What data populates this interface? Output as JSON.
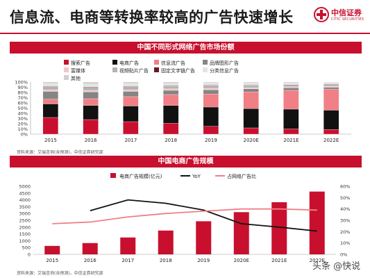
{
  "header": {
    "title": "信息流、电商等转换率较高的广告快速增长",
    "logo_name": "中信证券",
    "logo_en": "CITIC SECURITIES"
  },
  "chart1_banner": "中国不同形式网络广告市场份额",
  "chart2_banner": "中国电商广告规模",
  "source1": "资料来源：艾瑞咨询(含预测)，中信证券研究部",
  "source2": "资料来源：艾瑞咨询(含预测)，中信证券研究部",
  "watermark": "头条 @快说",
  "chart_data": [
    {
      "type": "bar",
      "stacked": true,
      "title": "中国不同形式网络广告市场份额",
      "categories": [
        "2015",
        "2016",
        "2017",
        "2018",
        "2019",
        "2020E",
        "2021E",
        "2022E"
      ],
      "ylim": [
        0,
        100
      ],
      "yticks": [
        "0%",
        "10%",
        "20%",
        "30%",
        "40%",
        "50%",
        "60%",
        "70%",
        "80%",
        "90%",
        "100%"
      ],
      "legend_position": "top",
      "series": [
        {
          "name": "搜索广告",
          "color": "#c8102e",
          "values": [
            32,
            28,
            24,
            21,
            15,
            12,
            10,
            9
          ]
        },
        {
          "name": "电商广告",
          "color": "#111111",
          "values": [
            26,
            27,
            30,
            34,
            37,
            37,
            38,
            37
          ]
        },
        {
          "name": "信息流广告",
          "color": "#f07f86",
          "values": [
            9,
            13,
            18,
            21,
            25,
            32,
            36,
            40
          ]
        },
        {
          "name": "品牌图形广告",
          "color": "#858585",
          "values": [
            15,
            13,
            10,
            8,
            8,
            6,
            5,
            4
          ]
        },
        {
          "name": "富媒体",
          "color": "#f6c4c7",
          "values": [
            3,
            3,
            3,
            3,
            3,
            2,
            2,
            2
          ]
        },
        {
          "name": "视频贴片广告",
          "color": "#b3b3b3",
          "values": [
            6,
            6,
            6,
            5,
            5,
            4,
            3,
            3
          ]
        },
        {
          "name": "固定文字链广告",
          "color": "#6b1a1f",
          "values": [
            1,
            1,
            1,
            1,
            1,
            1,
            1,
            1
          ]
        },
        {
          "name": "分类信息广告",
          "color": "#e3e3e3",
          "values": [
            5,
            5,
            5,
            4,
            4,
            4,
            3,
            3
          ]
        },
        {
          "name": "其他",
          "color": "#d0d0d0",
          "values": [
            3,
            4,
            3,
            3,
            2,
            2,
            2,
            1
          ]
        }
      ]
    },
    {
      "type": "bar",
      "title": "中国电商广告规模",
      "categories": [
        "2015",
        "2016",
        "2017",
        "2018",
        "2019",
        "2020E",
        "2021E",
        "2022E"
      ],
      "ylim": [
        0,
        5000
      ],
      "yticks": [
        "0",
        "500",
        "1000",
        "1500",
        "2000",
        "2500",
        "3000",
        "3500",
        "4000",
        "4500",
        "5000"
      ],
      "y2lim": [
        0,
        60
      ],
      "y2ticks": [
        "0%",
        "10%",
        "20%",
        "30%",
        "40%",
        "50%",
        "60%"
      ],
      "legend_position": "top",
      "series": [
        {
          "name": "电商广告规模(亿元)",
          "type": "bar",
          "axis": "left",
          "color": "#c8102e",
          "values": [
            620,
            830,
            1240,
            1750,
            2430,
            3100,
            3830,
            4610
          ]
        },
        {
          "name": "YoY",
          "type": "line",
          "axis": "right",
          "color": "#111111",
          "values": [
            null,
            38.5,
            48,
            45,
            39,
            27,
            24,
            20.5
          ]
        },
        {
          "name": "占网络广告比",
          "type": "line",
          "axis": "right",
          "color": "#f07f86",
          "values": [
            27,
            28.5,
            33,
            36,
            38,
            40,
            40,
            39
          ]
        }
      ]
    }
  ]
}
